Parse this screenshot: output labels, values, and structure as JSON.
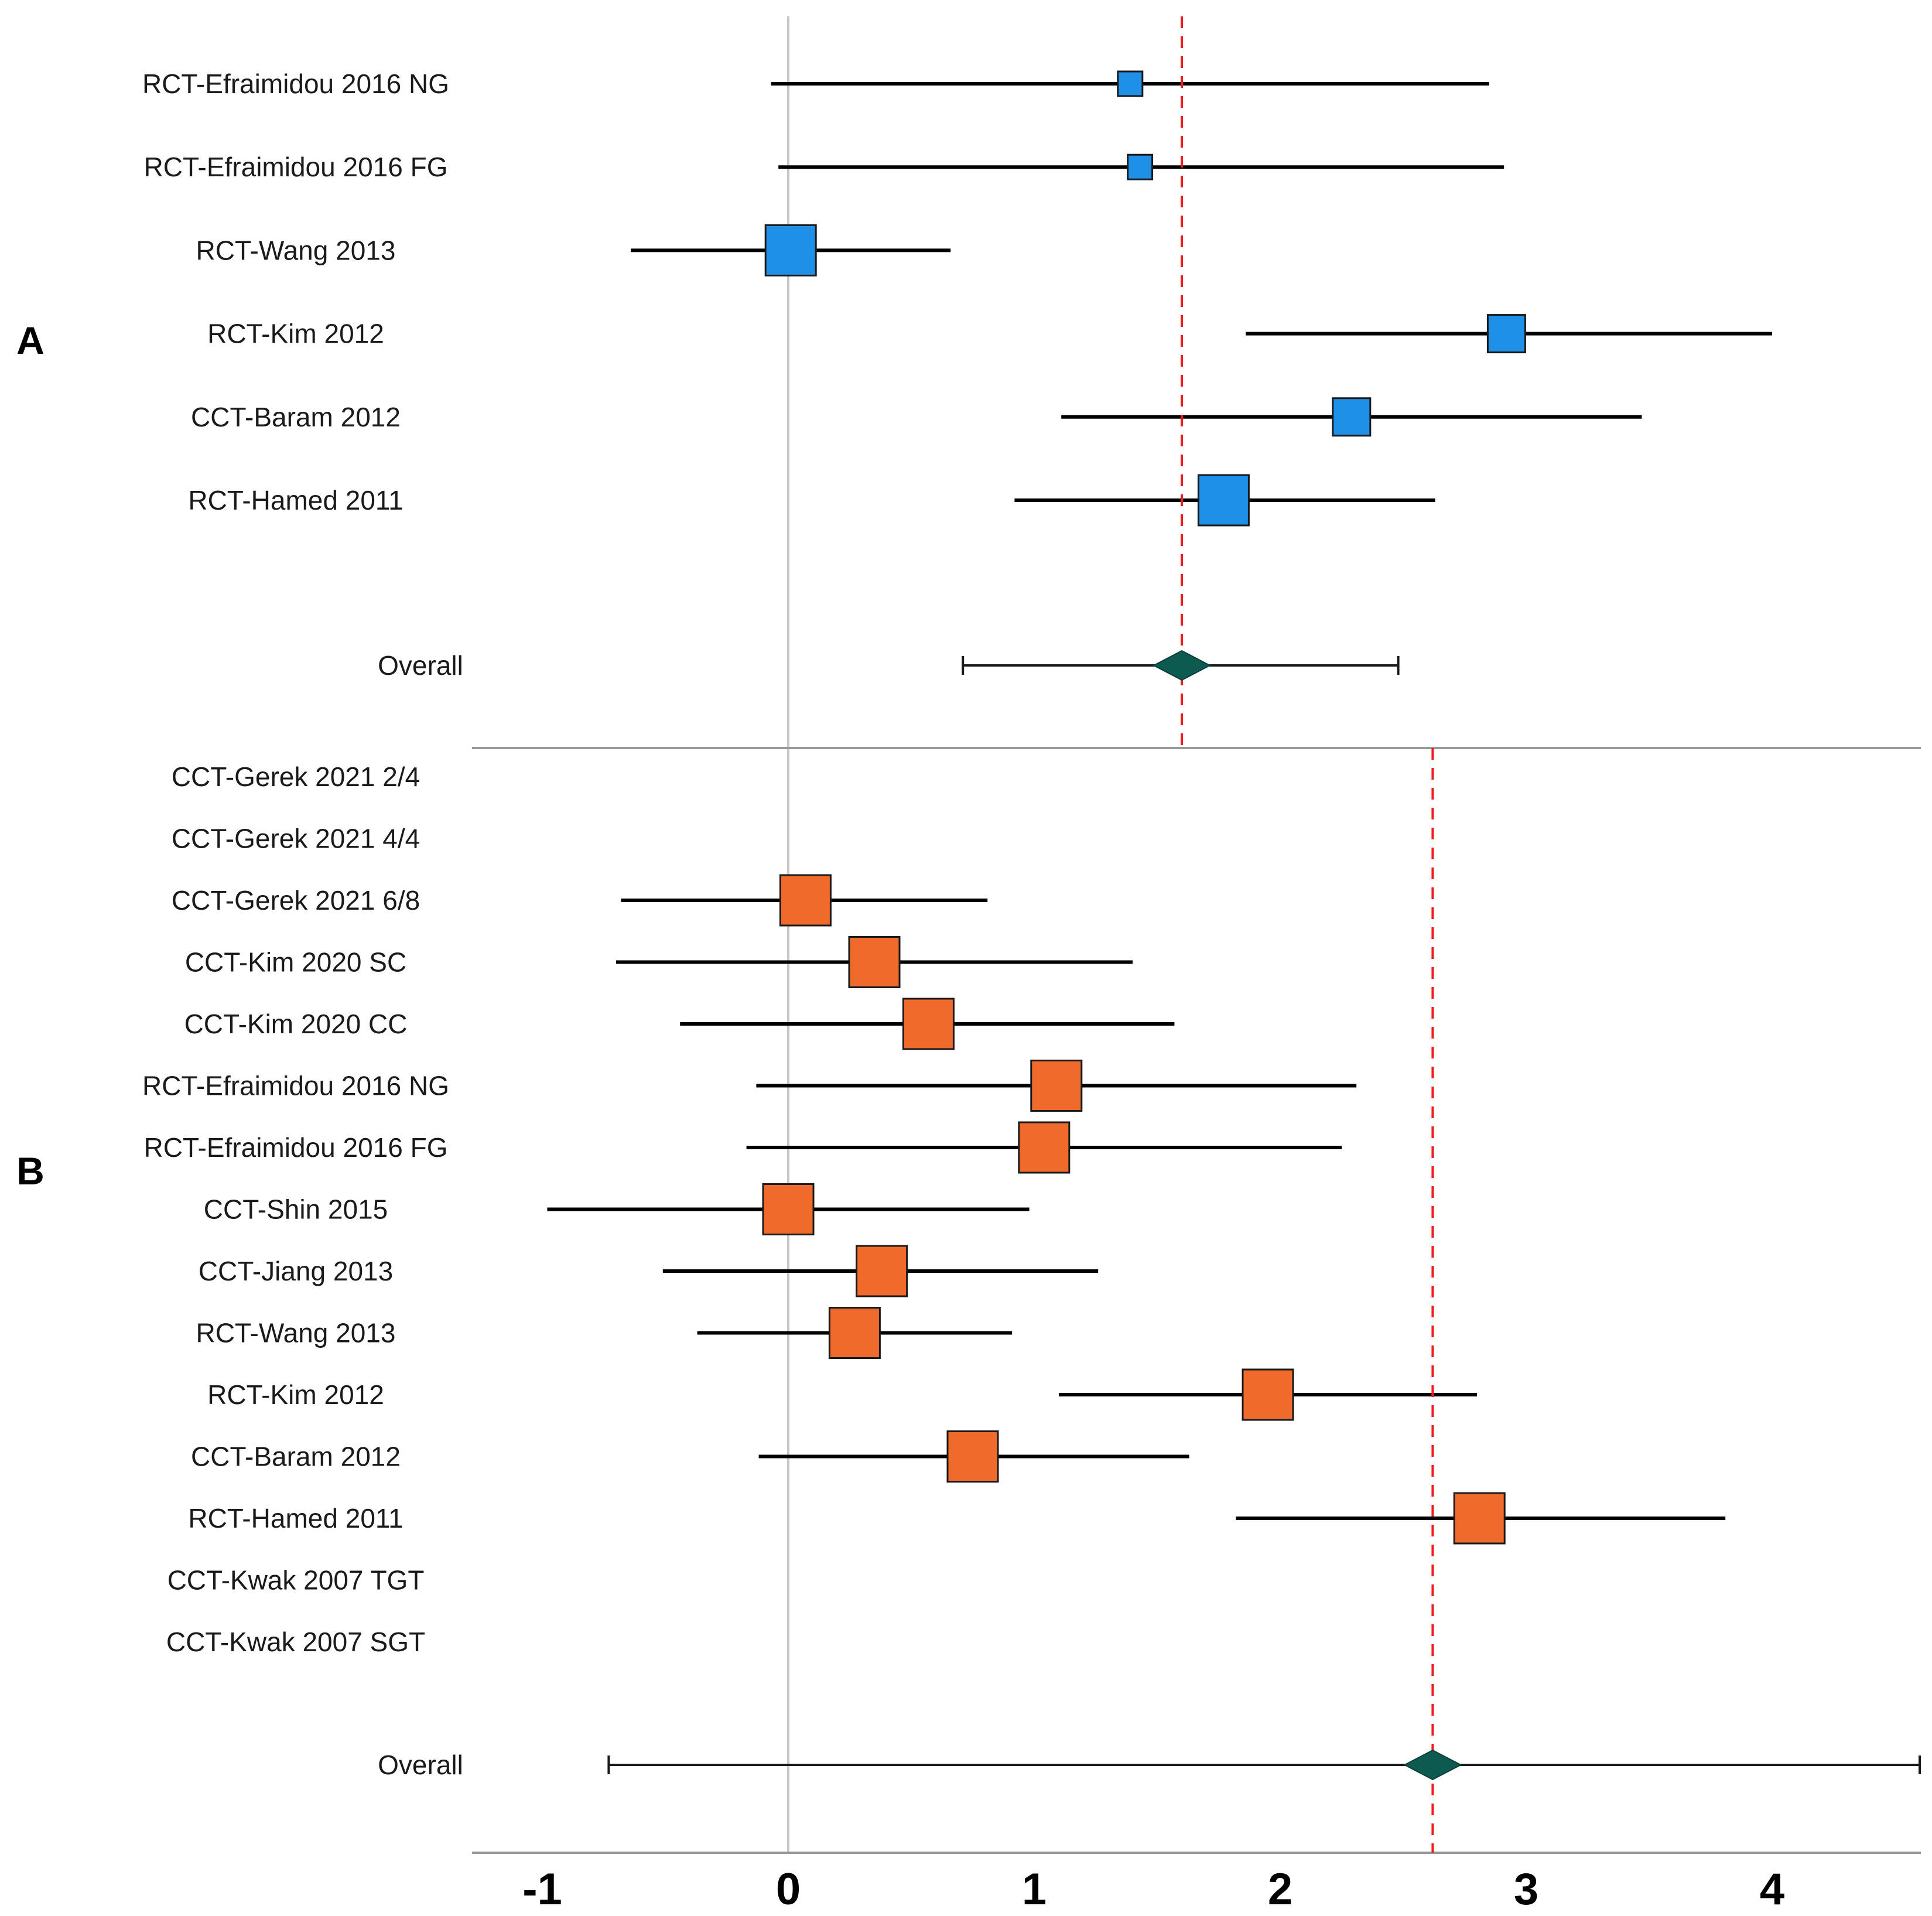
{
  "chart_data": {
    "type": "forest",
    "x_axis": {
      "range": [
        -1.3,
        4.6
      ],
      "ticks": [
        -1,
        0,
        1,
        2,
        3,
        4
      ],
      "tick_labels": [
        "-1",
        "0",
        "1",
        "2",
        "3",
        "4"
      ],
      "null_line": 0
    },
    "panels": [
      {
        "letter": "A",
        "color": "#1e90e8",
        "pooled_estimate": 1.6,
        "studies": [
          {
            "label": "RCT-Efraimidou 2016 NG",
            "estimate": 1.39,
            "ci": [
              -0.07,
              2.85
            ],
            "weight": "small"
          },
          {
            "label": "RCT-Efraimidou 2016 FG",
            "estimate": 1.43,
            "ci": [
              -0.04,
              2.91
            ],
            "weight": "small"
          },
          {
            "label": "RCT-Wang 2013",
            "estimate": 0.01,
            "ci": [
              -0.64,
              0.66
            ],
            "weight": "large"
          },
          {
            "label": "RCT-Kim 2012",
            "estimate": 2.92,
            "ci": [
              1.86,
              4.0
            ],
            "weight": "medium"
          },
          {
            "label": "CCT-Baram 2012",
            "estimate": 2.29,
            "ci": [
              1.11,
              3.47
            ],
            "weight": "medium"
          },
          {
            "label": "RCT-Hamed 2011",
            "estimate": 1.77,
            "ci": [
              0.92,
              2.63
            ],
            "weight": "large"
          }
        ],
        "overall": {
          "label": "Overall",
          "estimate": 1.6,
          "ci": [
            0.71,
            2.48
          ]
        }
      },
      {
        "letter": "B",
        "color": "#f06a2c",
        "pooled_estimate": 2.62,
        "studies": [
          {
            "label": "CCT-Gerek 2021 2/4",
            "estimate": null,
            "ci": null
          },
          {
            "label": "CCT-Gerek 2021 4/4",
            "estimate": null,
            "ci": null
          },
          {
            "label": "CCT-Gerek 2021 6/8",
            "estimate": 0.07,
            "ci": [
              -0.68,
              0.81
            ]
          },
          {
            "label": "CCT-Kim 2020 SC",
            "estimate": 0.35,
            "ci": [
              -0.7,
              1.4
            ]
          },
          {
            "label": "CCT-Kim 2020 CC",
            "estimate": 0.57,
            "ci": [
              -0.44,
              1.57
            ]
          },
          {
            "label": "RCT-Efraimidou 2016 NG",
            "estimate": 1.09,
            "ci": [
              -0.13,
              2.31
            ]
          },
          {
            "label": "RCT-Efraimidou 2016 FG",
            "estimate": 1.04,
            "ci": [
              -0.17,
              2.25
            ]
          },
          {
            "label": "CCT-Shin 2015",
            "estimate": 0.0,
            "ci": [
              -0.98,
              0.98
            ]
          },
          {
            "label": "CCT-Jiang 2013",
            "estimate": 0.38,
            "ci": [
              -0.51,
              1.26
            ]
          },
          {
            "label": "RCT-Wang 2013",
            "estimate": 0.27,
            "ci": [
              -0.37,
              0.91
            ]
          },
          {
            "label": "RCT-Kim 2012",
            "estimate": 1.95,
            "ci": [
              1.1,
              2.8
            ]
          },
          {
            "label": "CCT-Baram 2012",
            "estimate": 0.75,
            "ci": [
              -0.12,
              1.63
            ]
          },
          {
            "label": "RCT-Hamed 2011",
            "estimate": 2.81,
            "ci": [
              1.82,
              3.81
            ]
          },
          {
            "label": "CCT-Kwak 2007 TGT",
            "estimate": null,
            "ci": null
          },
          {
            "label": "CCT-Kwak 2007 SGT",
            "estimate": null,
            "ci": null
          }
        ],
        "overall": {
          "label": "Overall",
          "estimate": 2.62,
          "ci": [
            -0.73,
            4.6
          ]
        }
      }
    ],
    "colors": {
      "ci_line": "#000000",
      "pooled_line": "#ee1c1c",
      "null_line": "#c8c8c8",
      "diamond": "#0c5a50",
      "axis": "#999999"
    }
  }
}
